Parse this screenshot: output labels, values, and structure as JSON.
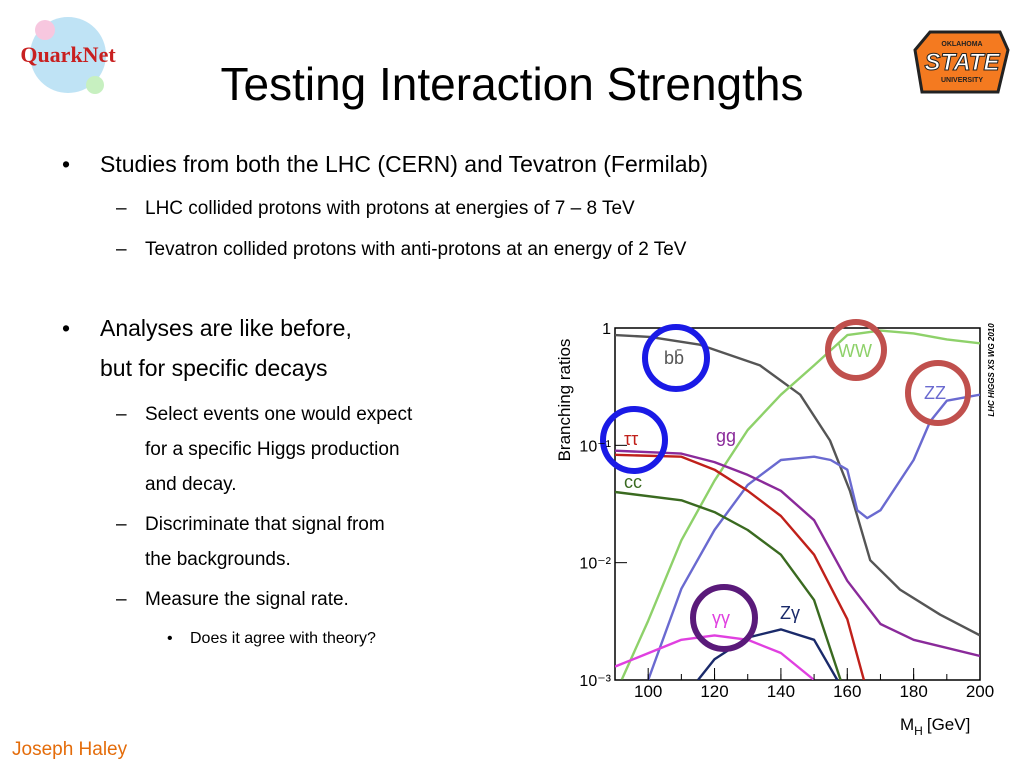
{
  "title": "Testing Interaction Strengths",
  "logos": {
    "left": "QuarkNet",
    "right_top": "OKLAHOMA",
    "right": "STATE",
    "right_bottom": "UNIVERSITY"
  },
  "bullets": [
    {
      "level": 1,
      "lines": [
        "Studies from both the LHC (CERN) and Tevatron (Fermilab)"
      ]
    },
    {
      "level": 2,
      "lines": [
        "LHC collided protons with protons at energies of 7 – 8 TeV"
      ]
    },
    {
      "level": 2,
      "lines": [
        "Tevatron collided protons with anti-protons at an energy of 2 TeV"
      ]
    },
    {
      "level": 1,
      "lines": [
        "Analyses are like before,",
        "but for specific decays"
      ]
    },
    {
      "level": 2,
      "lines": [
        "Select events one would expect",
        "for a specific Higgs production",
        "and decay."
      ]
    },
    {
      "level": 2,
      "lines": [
        "Discriminate that signal from",
        "the backgrounds."
      ]
    },
    {
      "level": 2,
      "lines": [
        "Measure the signal rate."
      ]
    },
    {
      "level": 3,
      "lines": [
        "Does it agree with theory?"
      ]
    }
  ],
  "footer": "Joseph Haley",
  "chart_data": {
    "type": "line",
    "y_label": "Branching ratios",
    "x_label": {
      "main": "M",
      "sub": "H",
      "unit": "[GeV]"
    },
    "watermark": "LHC HIGGS XS WG 2010",
    "xlim": [
      90,
      200
    ],
    "xticks": [
      100,
      120,
      140,
      160,
      180,
      200
    ],
    "ylim": [
      0.001,
      1
    ],
    "log_y": true,
    "yticks": [
      1,
      {
        "value": 0.1,
        "label": "10⁻¹"
      },
      {
        "value": 0.01,
        "label": "10⁻²"
      },
      {
        "value": 0.001,
        "label": "10⁻³"
      }
    ],
    "series": [
      {
        "name": "bb̄",
        "color": "#555555",
        "x": [
          90,
          100.5,
          115.6,
          133.7,
          145.8,
          154.8,
          160.8,
          166.9,
          175.9,
          188,
          200
        ],
        "values": [
          0.87,
          0.84,
          0.72,
          0.48,
          0.27,
          0.11,
          0.041,
          0.0105,
          0.0059,
          0.0036,
          0.0024
        ]
      },
      {
        "name": "WW",
        "color": "#8ed16a",
        "x": [
          92,
          100,
          110,
          120,
          130,
          140,
          150,
          160,
          170,
          180,
          190,
          200
        ],
        "values": [
          0.001,
          0.0032,
          0.0155,
          0.05,
          0.135,
          0.27,
          0.48,
          0.87,
          0.95,
          0.9,
          0.8,
          0.74
        ]
      },
      {
        "name": "ZZ",
        "color": "#6a6ad0",
        "x": [
          100,
          110,
          120,
          130,
          140,
          150,
          155,
          160,
          163,
          166,
          170,
          180,
          185,
          190,
          200
        ],
        "values": [
          0.001,
          0.006,
          0.019,
          0.046,
          0.075,
          0.08,
          0.075,
          0.062,
          0.028,
          0.024,
          0.028,
          0.075,
          0.16,
          0.24,
          0.27
        ]
      },
      {
        "name": "gg",
        "color": "#8a2a9a",
        "x": [
          90,
          110,
          120,
          130,
          140,
          150,
          160,
          170,
          180,
          200
        ],
        "values": [
          0.09,
          0.085,
          0.072,
          0.056,
          0.041,
          0.023,
          0.007,
          0.003,
          0.0022,
          0.0016
        ]
      },
      {
        "name": "ττ",
        "color": "#c0201a",
        "x": [
          90,
          110,
          120,
          130,
          140,
          150,
          160,
          165
        ],
        "values": [
          0.083,
          0.08,
          0.062,
          0.041,
          0.025,
          0.0117,
          0.0033,
          0.001
        ]
      },
      {
        "name": "cc",
        "color": "#3a6a20",
        "x": [
          90,
          110,
          120,
          130,
          140,
          150,
          158
        ],
        "values": [
          0.04,
          0.034,
          0.027,
          0.019,
          0.0117,
          0.0048,
          0.001
        ]
      },
      {
        "name": "γγ",
        "color": "#e040e0",
        "x": [
          90,
          110,
          120,
          130,
          140,
          150
        ],
        "values": [
          0.0013,
          0.0022,
          0.0024,
          0.0022,
          0.0017,
          0.001
        ]
      },
      {
        "name": "Zγ",
        "color": "#1a2a6a",
        "x": [
          115,
          120,
          130,
          140,
          150,
          157
        ],
        "values": [
          0.001,
          0.0015,
          0.0023,
          0.0027,
          0.0022,
          0.001
        ]
      }
    ]
  }
}
